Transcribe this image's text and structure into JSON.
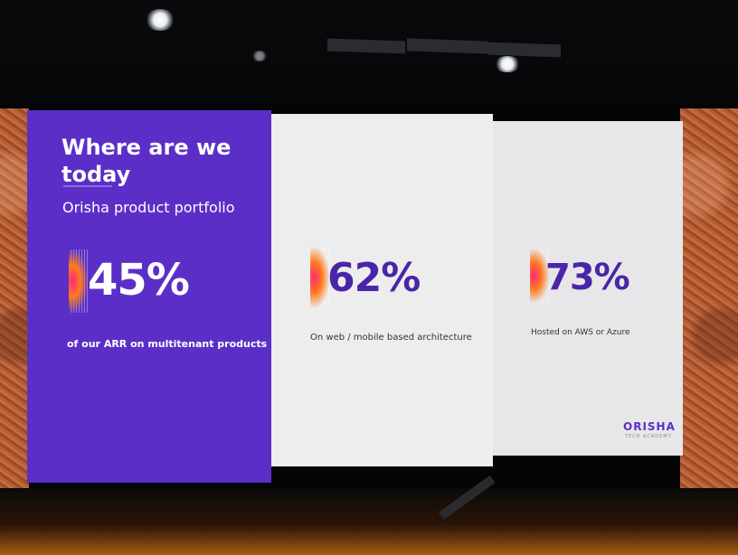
{
  "slide": {
    "heading_line1": "Where  are we",
    "heading_line2": "today",
    "subtitle": "Orisha product portfolio",
    "stats": [
      {
        "value": "45%",
        "caption": "of our ARR on multitenant products"
      },
      {
        "value": "62%",
        "caption": "On web / mobile based architecture"
      },
      {
        "value": "73%",
        "caption": "Hosted on AWS or Azure"
      }
    ],
    "logo_text": "ORISHA",
    "logo_subtext": "TECH ACADEMY"
  },
  "colors": {
    "purple": "#5b2fc7",
    "light_panel": "#ededed",
    "accent_gradient": "#ff2a7a",
    "stage_orange": "#a85a14"
  }
}
